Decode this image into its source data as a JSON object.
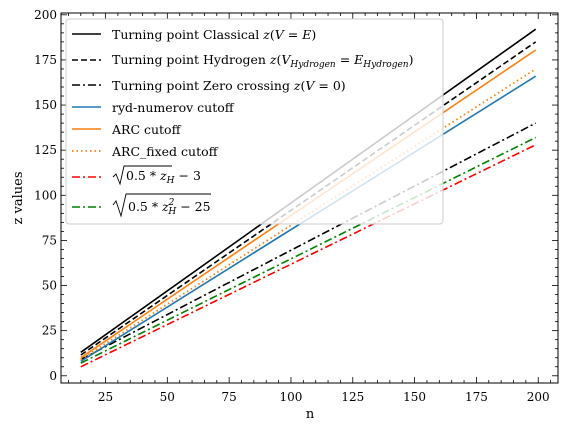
{
  "chart_data": {
    "type": "line",
    "xlabel": "n",
    "ylabel": "z values",
    "xlim": [
      7,
      208
    ],
    "ylim": [
      -4,
      201
    ],
    "xticks": [
      25,
      50,
      75,
      100,
      125,
      150,
      175,
      200
    ],
    "yticks": [
      0,
      25,
      50,
      75,
      100,
      125,
      150,
      175,
      200
    ],
    "grid": false,
    "legend_location": "upper-left",
    "x": [
      15,
      199
    ],
    "series": [
      {
        "name": "Turning point Classical z(V = E)",
        "color": "#000000",
        "dash": "solid",
        "values": [
          13,
          192
        ]
      },
      {
        "name": "Turning point Hydrogen z(V_Hydrogen = E_Hydrogen)",
        "color": "#000000",
        "dash": "dashed",
        "values": [
          11.5,
          185
        ]
      },
      {
        "name": "Turning point Zero crossing z(V = 0)",
        "color": "#000000",
        "dash": "dashdot",
        "values": [
          9,
          140
        ]
      },
      {
        "name": "ryd-numerov cutoff",
        "color": "#1f77b4",
        "dash": "solid",
        "values": [
          8,
          166
        ]
      },
      {
        "name": "ARC cutoff",
        "color": "#ff7f0e",
        "dash": "solid",
        "values": [
          10,
          180.5
        ]
      },
      {
        "name": "ARC_fixed cutoff",
        "color": "#ff7f0e",
        "dash": "dotted",
        "values": [
          9,
          170
        ]
      },
      {
        "name": "√(0.5 * z_H) − 3",
        "color": "#ff0000",
        "dash": "dashdot",
        "values": [
          5,
          128
        ]
      },
      {
        "name": "√(0.5 * z_H² − 25)",
        "color": "#008000",
        "dash": "dashdot",
        "values": [
          7,
          132
        ]
      }
    ]
  },
  "legend_labels": [
    "Turning point Classical ",
    "Turning point Hydrogen ",
    "Turning point Zero crossing ",
    "ryd-numerov cutoff",
    "ARC cutoff",
    "ARC_fixed cutoff",
    "",
    ""
  ]
}
